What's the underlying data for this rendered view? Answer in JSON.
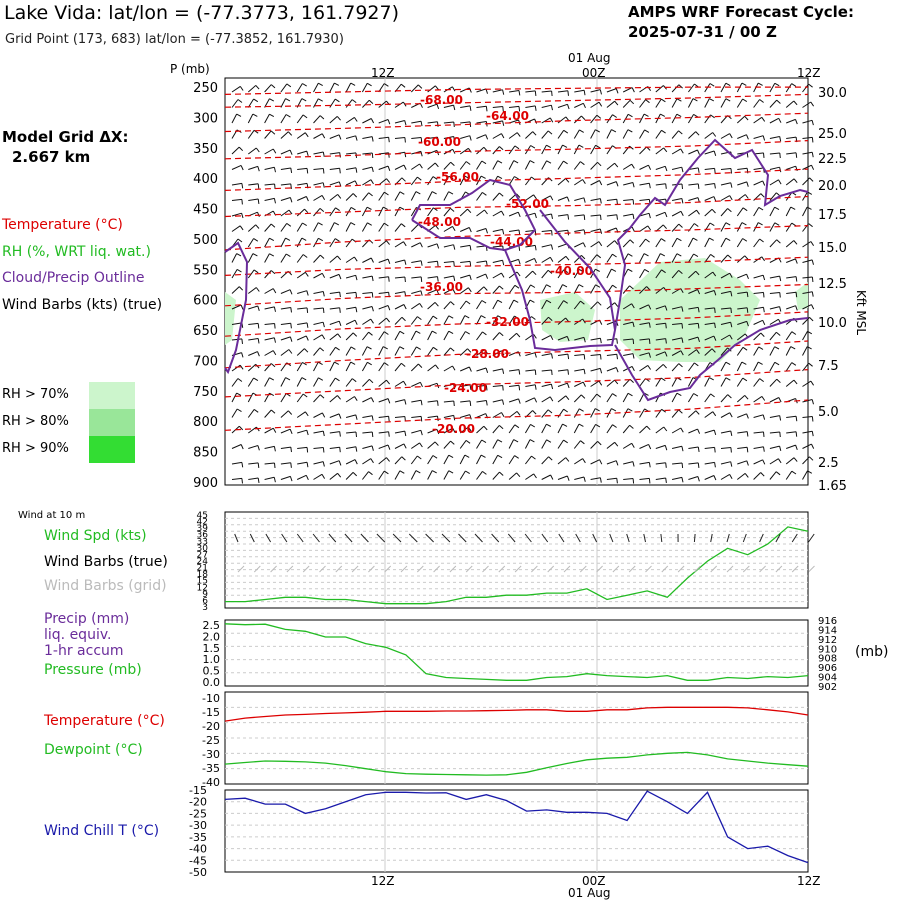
{
  "header": {
    "title": "Lake Vida:  lat/lon = (-77.3773, 161.7927)",
    "subtitle": "Grid Point (173, 683) lat/lon = (-77.3852, 161.7930)",
    "cycle_line1": "AMPS WRF Forecast Cycle:",
    "cycle_line2": "2025-07-31 / 00  Z",
    "grid_title": "Model Grid ΔX:",
    "grid_value": "2.667 km"
  },
  "legend": {
    "temperature": "Temperature (°C)",
    "rh": "RH (%, WRT liq. wat.)",
    "cloud": "Cloud/Precip Outline",
    "wind": "Wind Barbs (kts) (true)",
    "rh70": "RH > 70%",
    "rh80": "RH > 80%",
    "rh90": "RH > 90%",
    "colors": {
      "rh70": "#ccf5cc",
      "rh80": "#99e699",
      "rh90": "#33dd33",
      "temp": "#dd0000",
      "cloud": "#6a2c9a"
    }
  },
  "axes": {
    "p_unit": "P (mb)",
    "right_unit": "Kft MSL",
    "top_date": "01 Aug",
    "bottom_date": "01 Aug",
    "time_ticks": [
      "12Z",
      "00Z",
      "12Z"
    ],
    "bottom_time_ticks": [
      "12Z",
      "00Z",
      "12Z"
    ]
  },
  "panel_labels": {
    "wind10": "Wind at 10 m",
    "wind_spd": "Wind Spd (kts)",
    "barbs_true": "Wind Barbs (true)",
    "barbs_grid": "Wind Barbs (grid)",
    "precip1": "Precip (mm)",
    "precip2": "liq. equiv.",
    "precip3": "1-hr accum",
    "pressure": "Pressure (mb)",
    "pressure_unit": "(mb)",
    "temp": "Temperature (°C)",
    "dew": "Dewpoint (°C)",
    "chill": "Wind Chill T (°C)"
  },
  "chart_data": [
    {
      "type": "line",
      "name": "cross-section",
      "y_pressure_ticks": [
        "250",
        "300",
        "350",
        "400",
        "450",
        "500",
        "550",
        "600",
        "650",
        "700",
        "750",
        "800",
        "850",
        "900"
      ],
      "y_kft_ticks": [
        "30.0",
        "25.0",
        "22.5",
        "20.0",
        "17.5",
        "15.0",
        "12.5",
        "10.0",
        "7.5",
        "5.0",
        "2.5",
        "1.65"
      ],
      "temperature_contour_labels": [
        "-68.00",
        "-64.00",
        "-60.00",
        "-56.00",
        "-52.00",
        "-48.00",
        "-44.00",
        "-40.00",
        "-36.00",
        "-32.00",
        "-28.00",
        "-24.00",
        "-20.00"
      ],
      "temperature_contours": [
        {
          "label": "-68.00",
          "p": [
            262,
            258,
            254,
            252,
            250,
            250
          ]
        },
        {
          "label": "-64.00",
          "p": [
            283,
            280,
            276,
            272,
            268,
            262
          ]
        },
        {
          "label": "-60.00",
          "p": [
            323,
            318,
            312,
            305,
            300,
            293
          ]
        },
        {
          "label": "-56.00",
          "p": [
            368,
            363,
            356,
            352,
            347,
            338
          ]
        },
        {
          "label": "-52.00",
          "p": [
            420,
            413,
            405,
            400,
            394,
            385
          ]
        },
        {
          "label": "-48.00",
          "p": [
            463,
            456,
            448,
            445,
            440,
            430
          ]
        },
        {
          "label": "-44.00",
          "p": [
            518,
            505,
            496,
            490,
            485,
            478
          ]
        },
        {
          "label": "-40.00",
          "p": [
            560,
            550,
            545,
            542,
            538,
            530
          ]
        },
        {
          "label": "-36.00",
          "p": [
            610,
            598,
            590,
            588,
            582,
            575
          ]
        },
        {
          "label": "-32.00",
          "p": [
            660,
            648,
            640,
            636,
            630,
            620
          ]
        },
        {
          "label": "-28.00",
          "p": [
            712,
            700,
            690,
            685,
            680,
            668
          ]
        },
        {
          "label": "-24.00",
          "p": [
            760,
            750,
            740,
            735,
            728,
            715
          ]
        },
        {
          "label": "-20.00",
          "p": [
            815,
            805,
            795,
            790,
            780,
            765
          ]
        }
      ],
      "time_fraction": [
        0,
        0.2,
        0.4,
        0.6,
        0.8,
        1.0
      ]
    },
    {
      "type": "line",
      "name": "wind speed 10 m",
      "y_ticks": [
        "45",
        "42",
        "39",
        "36",
        "33",
        "30",
        "27",
        "24",
        "21",
        "18",
        "15",
        "12",
        "9",
        "6",
        "3"
      ],
      "ylim": [
        0,
        45
      ],
      "values": [
        3,
        3,
        4,
        5,
        5,
        4,
        4,
        3,
        2,
        2,
        2,
        3,
        5,
        5,
        6,
        6,
        7,
        7,
        9,
        4,
        6,
        8,
        5,
        14,
        22,
        28,
        25,
        30,
        38,
        36
      ]
    },
    {
      "type": "line",
      "name": "precip and pressure",
      "y_left_ticks": [
        "2.5",
        "2.0",
        "1.5",
        "1.0",
        "0.5",
        "0.0"
      ],
      "y_right_ticks": [
        "916",
        "914",
        "912",
        "910",
        "908",
        "906",
        "904",
        "902"
      ],
      "pressure_ylim": [
        902,
        916
      ],
      "pressure_values": [
        915.2,
        915.0,
        915.1,
        914.0,
        913.6,
        912.4,
        912.4,
        911.0,
        910.2,
        908.6,
        904.6,
        903.8,
        903.6,
        903.4,
        903.2,
        903.2,
        903.8,
        904.0,
        904.6,
        904.2,
        904.0,
        903.8,
        904.2,
        903.2,
        903.2,
        903.8,
        903.6,
        904.0,
        903.8,
        904.2
      ]
    },
    {
      "type": "line",
      "name": "temperature and dewpoint",
      "y_ticks": [
        "-10",
        "-15",
        "-20",
        "-25",
        "-30",
        "-35",
        "-40"
      ],
      "ylim": [
        -40,
        -10
      ],
      "temperature": [
        -19.5,
        -18.5,
        -18.0,
        -17.5,
        -17.3,
        -17.0,
        -16.8,
        -16.6,
        -16.3,
        -16.3,
        -16.3,
        -16.2,
        -16.2,
        -16.1,
        -16.0,
        -15.8,
        -15.8,
        -16.3,
        -16.3,
        -15.8,
        -15.8,
        -15.2,
        -15.0,
        -15.0,
        -15.0,
        -15.0,
        -15.2,
        -15.8,
        -16.5,
        -17.5
      ],
      "dewpoint": [
        -33.5,
        -33.0,
        -32.5,
        -32.6,
        -32.8,
        -33.2,
        -34.0,
        -35.0,
        -36.0,
        -36.6,
        -36.8,
        -36.9,
        -37.0,
        -37.1,
        -37.0,
        -36.2,
        -34.7,
        -33.3,
        -32.1,
        -31.6,
        -31.3,
        -30.5,
        -30.0,
        -29.7,
        -30.5,
        -31.8,
        -32.5,
        -33.2,
        -33.7,
        -34.2
      ]
    },
    {
      "type": "line",
      "name": "wind chill",
      "y_ticks": [
        "-15",
        "-20",
        "-25",
        "-30",
        "-35",
        "-40",
        "-45",
        "-50"
      ],
      "ylim": [
        -50,
        -15
      ],
      "values": [
        -19,
        -18.5,
        -21,
        -21,
        -25,
        -23,
        -20,
        -17,
        -16,
        -16,
        -16.3,
        -16.2,
        -19,
        -17,
        -19.5,
        -24,
        -23.5,
        -24.5,
        -24.5,
        -25,
        -28,
        -15.5,
        -20,
        -25,
        -16,
        -35,
        -40,
        -39,
        -43,
        -46
      ]
    }
  ]
}
